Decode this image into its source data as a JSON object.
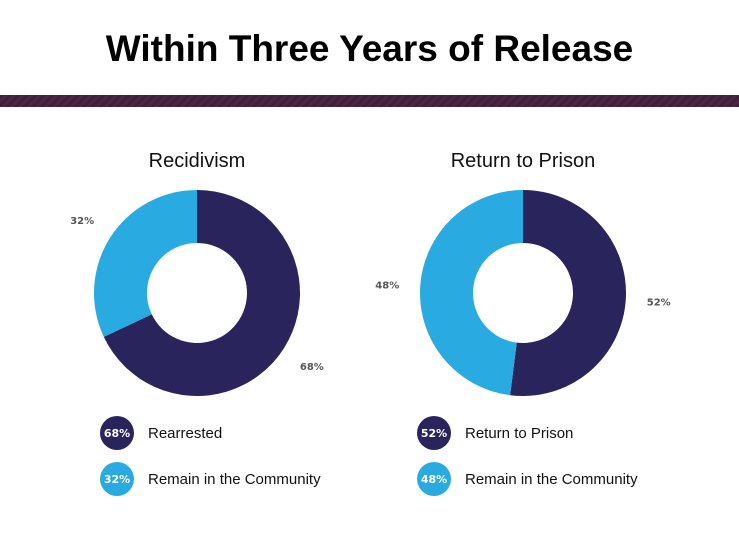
{
  "title": "Within Three Years of Release",
  "colors": {
    "dark": "#29245c",
    "light": "#29abe2",
    "bar": "#3f1f3a"
  },
  "chart_data": [
    {
      "type": "pie",
      "title": "Recidivism",
      "slices": [
        {
          "label": "Rearrested",
          "value": 68,
          "display": "68%",
          "color": "#29245c"
        },
        {
          "label": "Remain in the Community",
          "value": 32,
          "display": "32%",
          "color": "#29abe2"
        }
      ]
    },
    {
      "type": "pie",
      "title": "Return to Prison",
      "slices": [
        {
          "label": "Return to Prison",
          "value": 52,
          "display": "52%",
          "color": "#29245c"
        },
        {
          "label": "Remain in the Community",
          "value": 48,
          "display": "48%",
          "color": "#29abe2"
        }
      ]
    }
  ]
}
